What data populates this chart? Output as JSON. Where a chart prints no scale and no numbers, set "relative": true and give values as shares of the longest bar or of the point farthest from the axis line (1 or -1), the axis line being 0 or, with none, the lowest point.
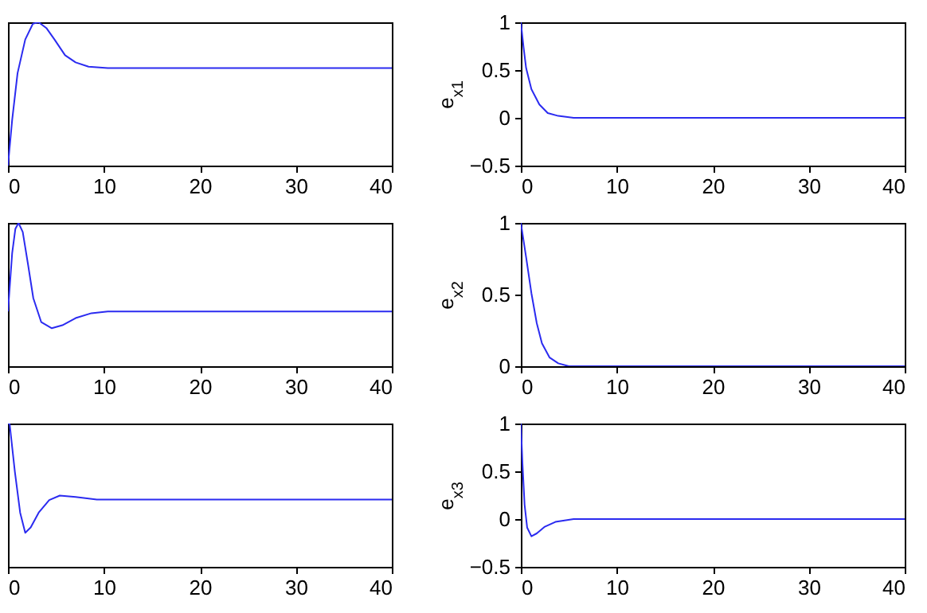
{
  "chart_data": [
    {
      "type": "line",
      "relative": true,
      "color": "#2b2bf0",
      "tick_labels": "x",
      "xlim": [
        0,
        40
      ],
      "xticks": [
        0,
        10,
        20,
        30,
        40
      ],
      "x": [
        0,
        0.44,
        1.0,
        1.8,
        2.6,
        3.2,
        4.0,
        4.85,
        5.95,
        7.05,
        8.4,
        10.4,
        40
      ],
      "values": [
        0,
        0.32,
        0.645,
        0.88,
        0.99,
        1.0,
        0.96,
        0.88,
        0.77,
        0.72,
        0.69,
        0.68,
        0.68
      ]
    },
    {
      "type": "line",
      "color": "#2b2bf0",
      "ylabel": "e$_{x1}$",
      "xlim": [
        0,
        40
      ],
      "xticks": [
        0,
        10,
        20,
        30,
        40
      ],
      "ylim": [
        -0.5,
        1
      ],
      "yticks": [
        -0.5,
        0,
        0.5,
        1
      ],
      "x": [
        0,
        0.28,
        0.55,
        1.1,
        1.93,
        2.8,
        3.9,
        5.5,
        40
      ],
      "values": [
        1,
        0.74,
        0.52,
        0.3,
        0.14,
        0.05,
        0.02,
        0,
        0
      ]
    },
    {
      "type": "line",
      "relative": true,
      "color": "#2b2bf0",
      "tick_labels": "x",
      "xlim": [
        0,
        40
      ],
      "xticks": [
        0,
        10,
        20,
        30,
        40
      ],
      "x": [
        0,
        0.44,
        0.77,
        1.1,
        1.54,
        2.1,
        2.64,
        3.47,
        4.57,
        5.67,
        7.05,
        8.7,
        10.4,
        40
      ],
      "values": [
        0.382,
        0.79,
        0.958,
        1.0,
        0.937,
        0.706,
        0.475,
        0.307,
        0.265,
        0.286,
        0.336,
        0.37,
        0.382,
        0.382
      ]
    },
    {
      "type": "line",
      "color": "#2b2bf0",
      "ylabel": "e$_{x2}$",
      "xlim": [
        0,
        40
      ],
      "xticks": [
        0,
        10,
        20,
        30,
        40
      ],
      "ylim": [
        0,
        1
      ],
      "yticks": [
        0,
        0.5,
        1
      ],
      "x": [
        0,
        0.55,
        1.1,
        1.66,
        2.2,
        3.0,
        3.9,
        5,
        40
      ],
      "values": [
        1,
        0.76,
        0.51,
        0.3,
        0.16,
        0.06,
        0.02,
        0,
        0
      ]
    },
    {
      "type": "line",
      "relative": true,
      "color": "#2b2bf0",
      "tick_labels": "x",
      "xlim": [
        0,
        40
      ],
      "xticks": [
        0,
        10,
        20,
        30,
        40
      ],
      "x": [
        0,
        0.17,
        0.72,
        1.27,
        1.8,
        2.37,
        3.2,
        4.3,
        5.4,
        7.05,
        9.26,
        40
      ],
      "values": [
        1.0,
        1.0,
        0.663,
        0.378,
        0.238,
        0.275,
        0.378,
        0.466,
        0.497,
        0.487,
        0.47,
        0.47
      ]
    },
    {
      "type": "line",
      "color": "#2b2bf0",
      "ylabel": "e$_{x3}$",
      "xlim": [
        0,
        40
      ],
      "xticks": [
        0,
        10,
        20,
        30,
        40
      ],
      "ylim": [
        -0.5,
        1
      ],
      "yticks": [
        -0.5,
        0,
        0.5,
        1
      ],
      "x": [
        0,
        0.17,
        0.39,
        0.66,
        1.1,
        1.66,
        2.5,
        3.6,
        5.5,
        40
      ],
      "values": [
        1,
        0.58,
        0.15,
        -0.09,
        -0.18,
        -0.15,
        -0.08,
        -0.03,
        0,
        0
      ]
    }
  ]
}
